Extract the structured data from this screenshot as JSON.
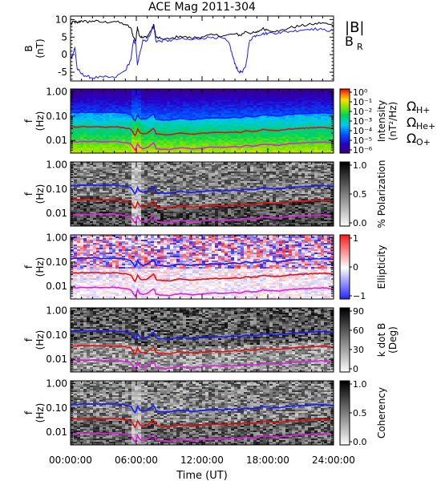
{
  "chart_data": {
    "type": "heatmap",
    "title": "ACE Mag 2011-304",
    "xlabel": "Time (UT)",
    "x_ticks": [
      "00:00:00",
      "06:00:00",
      "12:00:00",
      "18:00:00",
      "24:00:00"
    ],
    "x_range_hours": [
      0,
      24
    ],
    "panels": [
      {
        "id": "field",
        "type": "line",
        "ylabel": "B",
        "yunit": "(nT)",
        "ylim": [
          -7.5,
          11
        ],
        "yticks": [
          "10",
          "5",
          "0",
          "-5"
        ],
        "legend": [
          {
            "label": "|B|",
            "color": "#000000"
          },
          {
            "label": "B",
            "sub": "R",
            "color": "#1a1aff"
          }
        ],
        "series": [
          {
            "name": "|B|",
            "color": "#000000",
            "x": [
              0,
              0.3,
              0.6,
              1,
              1.5,
              2,
              3,
              4,
              5,
              5.5,
              5.75,
              5.95,
              6.1,
              6.3,
              6.6,
              7,
              7.4,
              7.6,
              7.8,
              8.2,
              9,
              10,
              11,
              12,
              13,
              14,
              15,
              15.5,
              16,
              16.5,
              17,
              17.5,
              18,
              19,
              20,
              21,
              22,
              23,
              24
            ],
            "y": [
              8.5,
              9.5,
              9,
              9.7,
              9.3,
              9.6,
              9.2,
              9.5,
              8.6,
              7.6,
              5,
              3.8,
              8,
              5.3,
              4.8,
              5.2,
              7.2,
              8.5,
              4.9,
              4.6,
              4.4,
              5.3,
              4.7,
              5.1,
              5.6,
              5.4,
              5.9,
              5.5,
              6.6,
              6.1,
              6.3,
              7.4,
              7.1,
              6.6,
              7.7,
              8.2,
              8.6,
              9.1,
              8.2
            ]
          },
          {
            "name": "B_R",
            "color": "#1a1aff",
            "x": [
              0,
              0.2,
              0.4,
              0.6,
              1,
              1.5,
              2,
              3,
              4,
              5,
              5.5,
              5.75,
              5.95,
              6.1,
              6.3,
              6.6,
              7,
              7.4,
              7.6,
              7.8,
              8.2,
              9,
              10,
              11,
              12,
              13,
              14,
              14.5,
              14.8,
              15,
              15.3,
              15.7,
              16,
              16.3,
              16.6,
              17,
              17.5,
              18,
              19,
              20,
              21,
              22,
              23,
              24
            ],
            "y": [
              -1,
              0,
              2,
              -4,
              -5.5,
              -6.2,
              -6.6,
              -6.4,
              -6.6,
              -4.5,
              -1.5,
              4,
              3.2,
              -3,
              0,
              4.2,
              4,
              7,
              8,
              3.8,
              3.9,
              4,
              4.5,
              4.2,
              4.7,
              5,
              4.6,
              3,
              -0.5,
              -2.5,
              -4.8,
              -5,
              -3,
              3.5,
              5,
              5.6,
              5.9,
              6.1,
              6.3,
              6.6,
              7,
              7.4,
              7.1,
              6.8
            ]
          }
        ]
      },
      {
        "id": "intensity",
        "type": "heatmap",
        "ylabel": "f",
        "yunit": "(Hz)",
        "colorbar": {
          "title": "Intensity",
          "unit": "(nT²/Hz)",
          "ticks": [
            "10⁰",
            "10⁻¹",
            "10⁻²",
            "10⁻³",
            "10⁻⁴",
            "10⁻⁵",
            "10⁻⁶"
          ],
          "scale": "rainbow"
        },
        "gyro_legend": [
          {
            "label": "Ω",
            "sub": "H+",
            "color": "#1a1aff"
          },
          {
            "label": "Ω",
            "sub": "He+",
            "color": "#e01010"
          },
          {
            "label": "Ω",
            "sub": "O+",
            "color": "#e020e0"
          }
        ]
      },
      {
        "id": "polarization",
        "type": "heatmap",
        "ylabel": "f",
        "yunit": "(Hz)",
        "colorbar": {
          "title": "% Polarization",
          "ticks": [
            "1.0",
            "0.5",
            "0.0"
          ],
          "scale": "gray"
        }
      },
      {
        "id": "ellipticity",
        "type": "heatmap",
        "ylabel": "f",
        "yunit": "(Hz)",
        "colorbar": {
          "title": "Ellipticity",
          "ticks": [
            "1",
            "0",
            "−1"
          ],
          "scale": "bwr"
        }
      },
      {
        "id": "kdotb",
        "type": "heatmap",
        "ylabel": "f",
        "yunit": "(Hz)",
        "colorbar": {
          "title": "k dot B",
          "unit": "(Deg)",
          "ticks": [
            "90",
            "60",
            "30",
            "0"
          ],
          "scale": "gray"
        }
      },
      {
        "id": "coherency",
        "type": "heatmap",
        "ylabel": "f",
        "yunit": "(Hz)",
        "colorbar": {
          "title": "Coherency",
          "ticks": [
            "1.0",
            "0.5",
            "0.0"
          ],
          "scale": "gray"
        }
      }
    ],
    "freq_axis": {
      "scale": "log",
      "range_hz": [
        0.003,
        1.3
      ],
      "ticks": [
        "1.00",
        "0.10",
        "0.01"
      ]
    },
    "gyrofrequency_lines": [
      {
        "name": "H+",
        "color": "#1a1aff",
        "source": "|B|",
        "factor_hz_per_nT": 0.01525
      },
      {
        "name": "He+",
        "color": "#e01010",
        "source": "|B|",
        "factor_hz_per_nT": 0.003812
      },
      {
        "name": "O+",
        "color": "#e020e0",
        "source": "|B|",
        "factor_hz_per_nT": 0.000953
      }
    ]
  }
}
